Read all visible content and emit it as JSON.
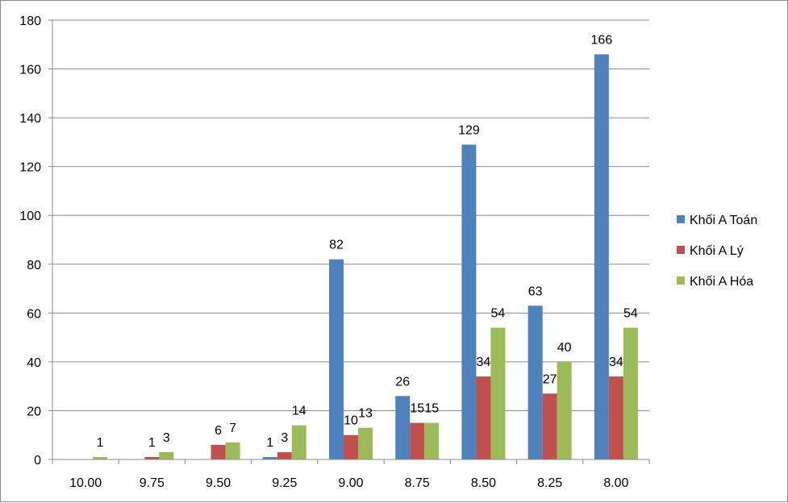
{
  "chart_data": {
    "type": "bar",
    "categories": [
      "10.00",
      "9.75",
      "9.50",
      "9.25",
      "9.00",
      "8.75",
      "8.50",
      "8.25",
      "8.00"
    ],
    "series": [
      {
        "name": "Khối A Toán",
        "color": "#4f81bd",
        "values": [
          0,
          0,
          0,
          1,
          82,
          26,
          129,
          63,
          166
        ]
      },
      {
        "name": "Khối A Lý",
        "color": "#c0504d",
        "values": [
          0,
          1,
          6,
          3,
          10,
          15,
          34,
          27,
          34
        ]
      },
      {
        "name": "Khối A Hóa",
        "color": "#9bbb59",
        "values": [
          1,
          3,
          7,
          14,
          13,
          15,
          54,
          40,
          54
        ]
      }
    ],
    "ylim": [
      0,
      180
    ],
    "yticks": [
      0,
      20,
      40,
      60,
      80,
      100,
      120,
      140,
      160,
      180
    ],
    "grid": true,
    "legend": "right"
  }
}
